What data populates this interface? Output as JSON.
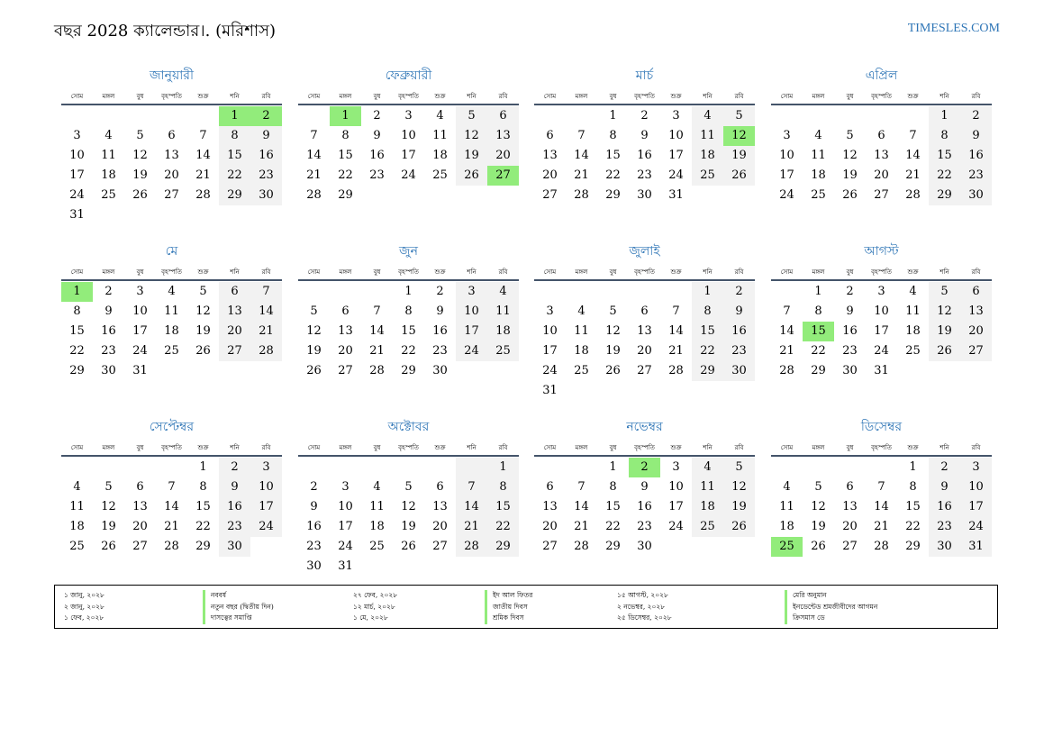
{
  "title": "বছর 2028 ক্যালেন্ডার।. (মরিশাস)",
  "site": "TIMESLES.COM",
  "weekdays": [
    "সোম",
    "মঙ্গল",
    "বুধ",
    "বৃহস্পতি",
    "শুক্র",
    "শনি",
    "রবি"
  ],
  "colors": {
    "accent": "#2e75b6",
    "holiday": "#92ec7b",
    "weekend": "#f2f2f2",
    "rule": "#44546a"
  },
  "months": [
    {
      "name": "জানুয়ারী",
      "offset": 5,
      "days": 31,
      "holidays": [
        1,
        2
      ]
    },
    {
      "name": "ফেব্রুয়ারী",
      "offset": 1,
      "days": 29,
      "holidays": [
        1,
        27
      ]
    },
    {
      "name": "মার্চ",
      "offset": 2,
      "days": 31,
      "holidays": [
        12
      ]
    },
    {
      "name": "এপ্রিল",
      "offset": 5,
      "days": 30,
      "holidays": []
    },
    {
      "name": "মে",
      "offset": 0,
      "days": 31,
      "holidays": [
        1
      ]
    },
    {
      "name": "জুন",
      "offset": 3,
      "days": 30,
      "holidays": []
    },
    {
      "name": "জুলাই",
      "offset": 5,
      "days": 31,
      "holidays": []
    },
    {
      "name": "আগস্ট",
      "offset": 1,
      "days": 31,
      "holidays": [
        15
      ]
    },
    {
      "name": "সেপ্টেম্বর",
      "offset": 4,
      "days": 30,
      "holidays": []
    },
    {
      "name": "অক্টোবর",
      "offset": 6,
      "days": 31,
      "holidays": []
    },
    {
      "name": "নভেম্বর",
      "offset": 2,
      "days": 30,
      "holidays": [
        2
      ]
    },
    {
      "name": "ডিসেম্বর",
      "offset": 4,
      "days": 31,
      "holidays": [
        25
      ]
    }
  ],
  "holiday_list": [
    [
      {
        "date": "১ জানু, ২০২৮",
        "name": "নববর্ষ"
      },
      {
        "date": "২ জানু, ২০২৮",
        "name": "নতুন বছর (দ্বিতীয় দিন)"
      },
      {
        "date": "১ ফেব, ২০২৮",
        "name": "দাসত্বের সমাপ্তি"
      }
    ],
    [
      {
        "date": "২৭ ফেব, ২০২৮",
        "name": "ইদ আল ফিতর"
      },
      {
        "date": "১২ মার্চ, ২০২৮",
        "name": "জাতীয় দিবস"
      },
      {
        "date": "১ মে, ২০২৮",
        "name": "শ্রমিক দিবস"
      }
    ],
    [
      {
        "date": "১৫ আগস্ট, ২০২৮",
        "name": "মেরি অনুমান"
      },
      {
        "date": "২ নভেম্বর, ২০২৮",
        "name": "ইনডেন্টেড শ্রমজীবীদের আগমন"
      },
      {
        "date": "২৫ ডিসেম্বর, ২০২৮",
        "name": "ক্রিসমাস ডে"
      }
    ]
  ]
}
